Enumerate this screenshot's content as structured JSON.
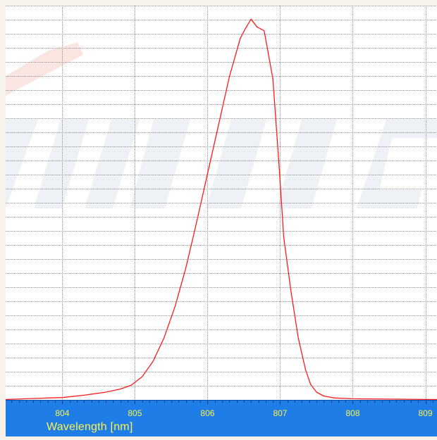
{
  "chart_data": {
    "type": "line",
    "title": "",
    "xlabel": "Wavelength [nm]",
    "ylabel": "",
    "xlim": [
      803.22,
      809.16
    ],
    "ylim": [
      0,
      1.02
    ],
    "x_ticks": [
      "804",
      "805",
      "806",
      "807",
      "808",
      "809"
    ],
    "grid": true,
    "series": [
      {
        "x": [
          803.22,
          803.5,
          804.0,
          804.3,
          804.6,
          804.8,
          804.95,
          805.1,
          805.25,
          805.4,
          805.55,
          805.7,
          805.85,
          806.0,
          806.15,
          806.3,
          806.45,
          806.52,
          806.6,
          806.68,
          806.78,
          806.9,
          806.98,
          807.05,
          807.15,
          807.25,
          807.35,
          807.42,
          807.5,
          807.6,
          807.75,
          808.0,
          808.5,
          809.16
        ],
        "y": [
          0.001,
          0.003,
          0.006,
          0.012,
          0.02,
          0.028,
          0.038,
          0.06,
          0.1,
          0.16,
          0.24,
          0.34,
          0.46,
          0.585,
          0.71,
          0.835,
          0.935,
          0.96,
          0.985,
          0.965,
          0.955,
          0.83,
          0.62,
          0.42,
          0.28,
          0.16,
          0.078,
          0.04,
          0.02,
          0.01,
          0.005,
          0.003,
          0.002,
          0.001
        ]
      }
    ]
  },
  "colors": {
    "line": "#ff1a1a",
    "grid": "#909090",
    "axis_bar": "#1e7de6",
    "tick_label": "#fff24a",
    "watermark": "#eef1f6"
  }
}
